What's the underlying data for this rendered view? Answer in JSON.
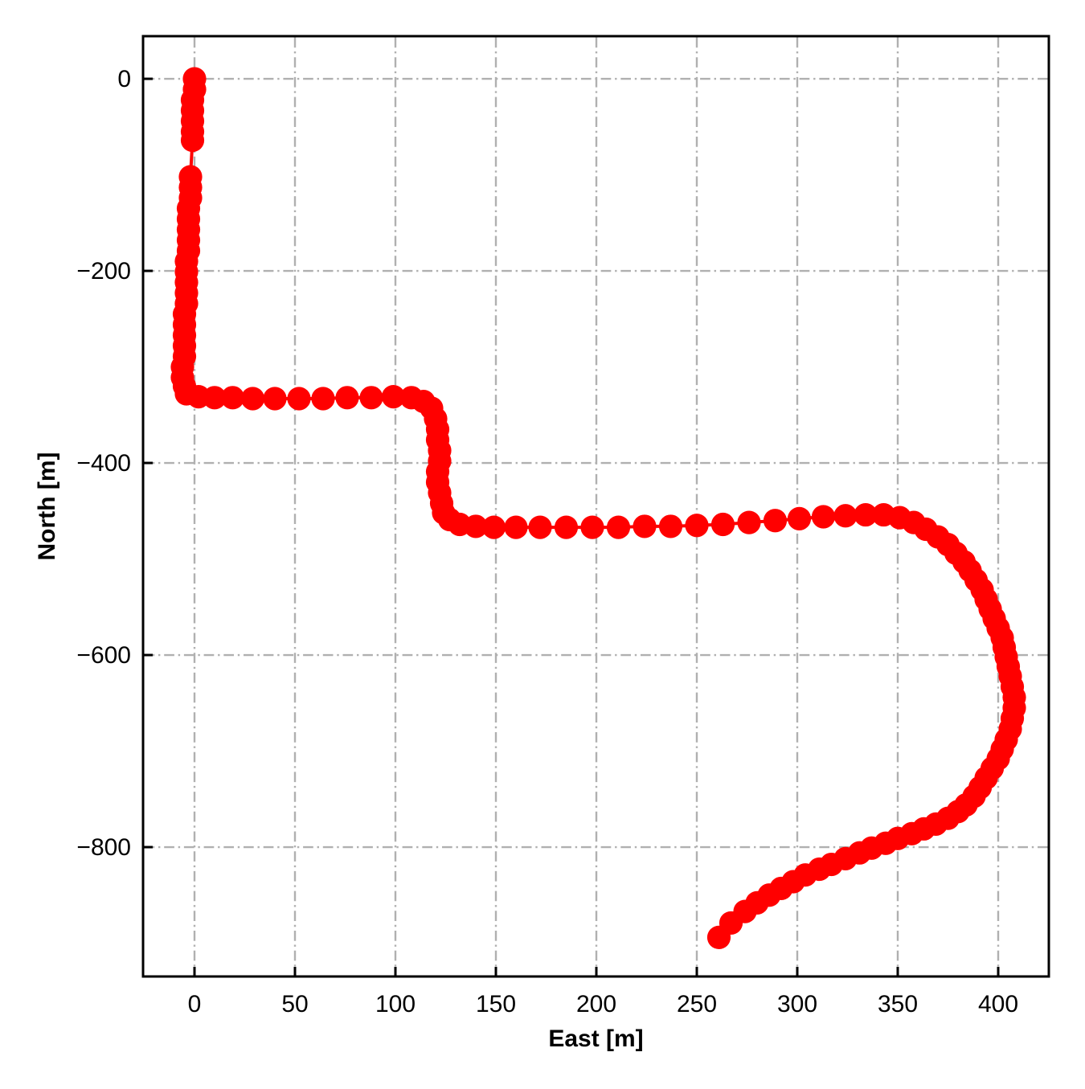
{
  "figure_background": "#ffffff",
  "chart_data": {
    "type": "scatter",
    "title": "",
    "xlabel": "East [m]",
    "ylabel": "North [m]",
    "xlim": [
      -25.6,
      425.2
    ],
    "ylim": [
      -934.7,
      44.4
    ],
    "xticks": [
      0,
      50,
      100,
      150,
      200,
      250,
      300,
      350,
      400
    ],
    "yticks": [
      0,
      -200,
      -400,
      -600,
      -800
    ],
    "grid": {
      "visible": true,
      "style": "dash-dot",
      "color": "#b0b0b0"
    },
    "legend": {
      "visible": false
    },
    "axes_color": "#000000",
    "series": [
      {
        "name": "vehicle-trajectory",
        "color": "#ff0000",
        "marker": "circle",
        "points": [
          [
            0,
            0
          ],
          [
            0,
            -11
          ],
          [
            -1,
            -22
          ],
          [
            -1,
            -33
          ],
          [
            -1,
            -44
          ],
          [
            -1,
            -55
          ],
          [
            -1,
            -64
          ],
          [
            -2,
            -102
          ],
          [
            -2,
            -113
          ],
          [
            -2,
            -124
          ],
          [
            -3,
            -135
          ],
          [
            -3,
            -146
          ],
          [
            -3,
            -157
          ],
          [
            -3,
            -168
          ],
          [
            -3,
            -179
          ],
          [
            -4,
            -190
          ],
          [
            -4,
            -201
          ],
          [
            -4,
            -212
          ],
          [
            -4,
            -223
          ],
          [
            -4,
            -234
          ],
          [
            -5,
            -245
          ],
          [
            -5,
            -256
          ],
          [
            -5,
            -267
          ],
          [
            -5,
            -278
          ],
          [
            -5,
            -289
          ],
          [
            -6,
            -300
          ],
          [
            -6,
            -311
          ],
          [
            -5,
            -320
          ],
          [
            -4,
            -328
          ],
          [
            2,
            -331
          ],
          [
            10,
            -332
          ],
          [
            19,
            -332
          ],
          [
            29,
            -333
          ],
          [
            40,
            -333
          ],
          [
            52,
            -333
          ],
          [
            64,
            -333
          ],
          [
            76,
            -332
          ],
          [
            88,
            -332
          ],
          [
            99,
            -331
          ],
          [
            108,
            -332
          ],
          [
            114,
            -336
          ],
          [
            118,
            -343
          ],
          [
            120,
            -354
          ],
          [
            121,
            -365
          ],
          [
            121,
            -376
          ],
          [
            122,
            -387
          ],
          [
            122,
            -398
          ],
          [
            121,
            -409
          ],
          [
            121,
            -420
          ],
          [
            122,
            -431
          ],
          [
            123,
            -442
          ],
          [
            124,
            -452
          ],
          [
            127,
            -459
          ],
          [
            132,
            -464
          ],
          [
            140,
            -466
          ],
          [
            149,
            -467
          ],
          [
            160,
            -467
          ],
          [
            172,
            -467
          ],
          [
            185,
            -467
          ],
          [
            198,
            -467
          ],
          [
            211,
            -467
          ],
          [
            224,
            -466
          ],
          [
            237,
            -466
          ],
          [
            250,
            -465
          ],
          [
            263,
            -464
          ],
          [
            276,
            -462
          ],
          [
            289,
            -460
          ],
          [
            301,
            -458
          ],
          [
            313,
            -456
          ],
          [
            324,
            -455
          ],
          [
            334,
            -454
          ],
          [
            343,
            -454
          ],
          [
            351,
            -457
          ],
          [
            358,
            -462
          ],
          [
            364,
            -469
          ],
          [
            370,
            -477
          ],
          [
            375,
            -485
          ],
          [
            379,
            -494
          ],
          [
            383,
            -503
          ],
          [
            386,
            -512
          ],
          [
            389,
            -522
          ],
          [
            392,
            -532
          ],
          [
            394,
            -542
          ],
          [
            396,
            -552
          ],
          [
            398,
            -562
          ],
          [
            400,
            -572
          ],
          [
            402,
            -582
          ],
          [
            403,
            -592
          ],
          [
            404,
            -602
          ],
          [
            405,
            -612
          ],
          [
            406,
            -622
          ],
          [
            407,
            -633
          ],
          [
            408,
            -644
          ],
          [
            408,
            -655
          ],
          [
            407,
            -666
          ],
          [
            406,
            -677
          ],
          [
            404,
            -688
          ],
          [
            402,
            -698
          ],
          [
            400,
            -708
          ],
          [
            397,
            -718
          ],
          [
            394,
            -728
          ],
          [
            391,
            -738
          ],
          [
            388,
            -747
          ],
          [
            384,
            -756
          ],
          [
            380,
            -763
          ],
          [
            375,
            -770
          ],
          [
            369,
            -776
          ],
          [
            363,
            -781
          ],
          [
            357,
            -786
          ],
          [
            350,
            -791
          ],
          [
            344,
            -796
          ],
          [
            337,
            -801
          ],
          [
            331,
            -806
          ],
          [
            324,
            -812
          ],
          [
            317,
            -818
          ],
          [
            311,
            -823
          ],
          [
            304,
            -829
          ],
          [
            298,
            -836
          ],
          [
            292,
            -843
          ],
          [
            286,
            -850
          ],
          [
            280,
            -858
          ],
          [
            274,
            -867
          ],
          [
            267,
            -879
          ],
          [
            261,
            -894
          ]
        ]
      }
    ]
  }
}
